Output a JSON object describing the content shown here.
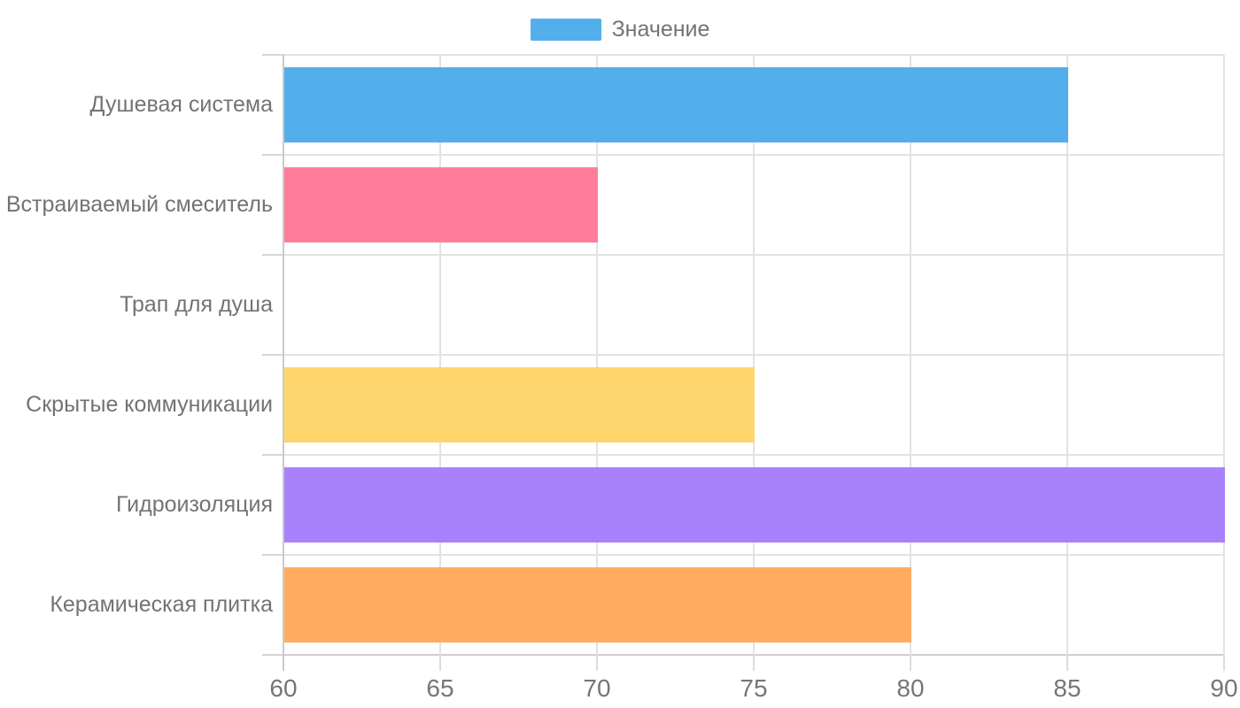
{
  "chart_data": {
    "type": "bar",
    "orientation": "horizontal",
    "title": "",
    "legend": "Значение",
    "legend_position": "top-center",
    "legend_color": "#53AEEC",
    "categories": [
      "Душевая система",
      "Встраиваемый смеситель",
      "Трап для душа",
      "Скрытые коммуникации",
      "Гидроизоляция",
      "Керамическая плитка"
    ],
    "values": [
      85,
      70,
      60,
      75,
      90,
      80
    ],
    "colors": [
      "#53AEEC",
      "#FF7D9B",
      null,
      "#FFD56E",
      "#A981FD",
      "#FFAC5F"
    ],
    "xlim": [
      60,
      90
    ],
    "xticks": [
      60,
      65,
      70,
      75,
      80,
      85,
      90
    ],
    "grid": true,
    "theme": {
      "text_color": "#737373",
      "grid_color": "#e2e2e2",
      "axis_color": "#c9c9c9"
    }
  }
}
